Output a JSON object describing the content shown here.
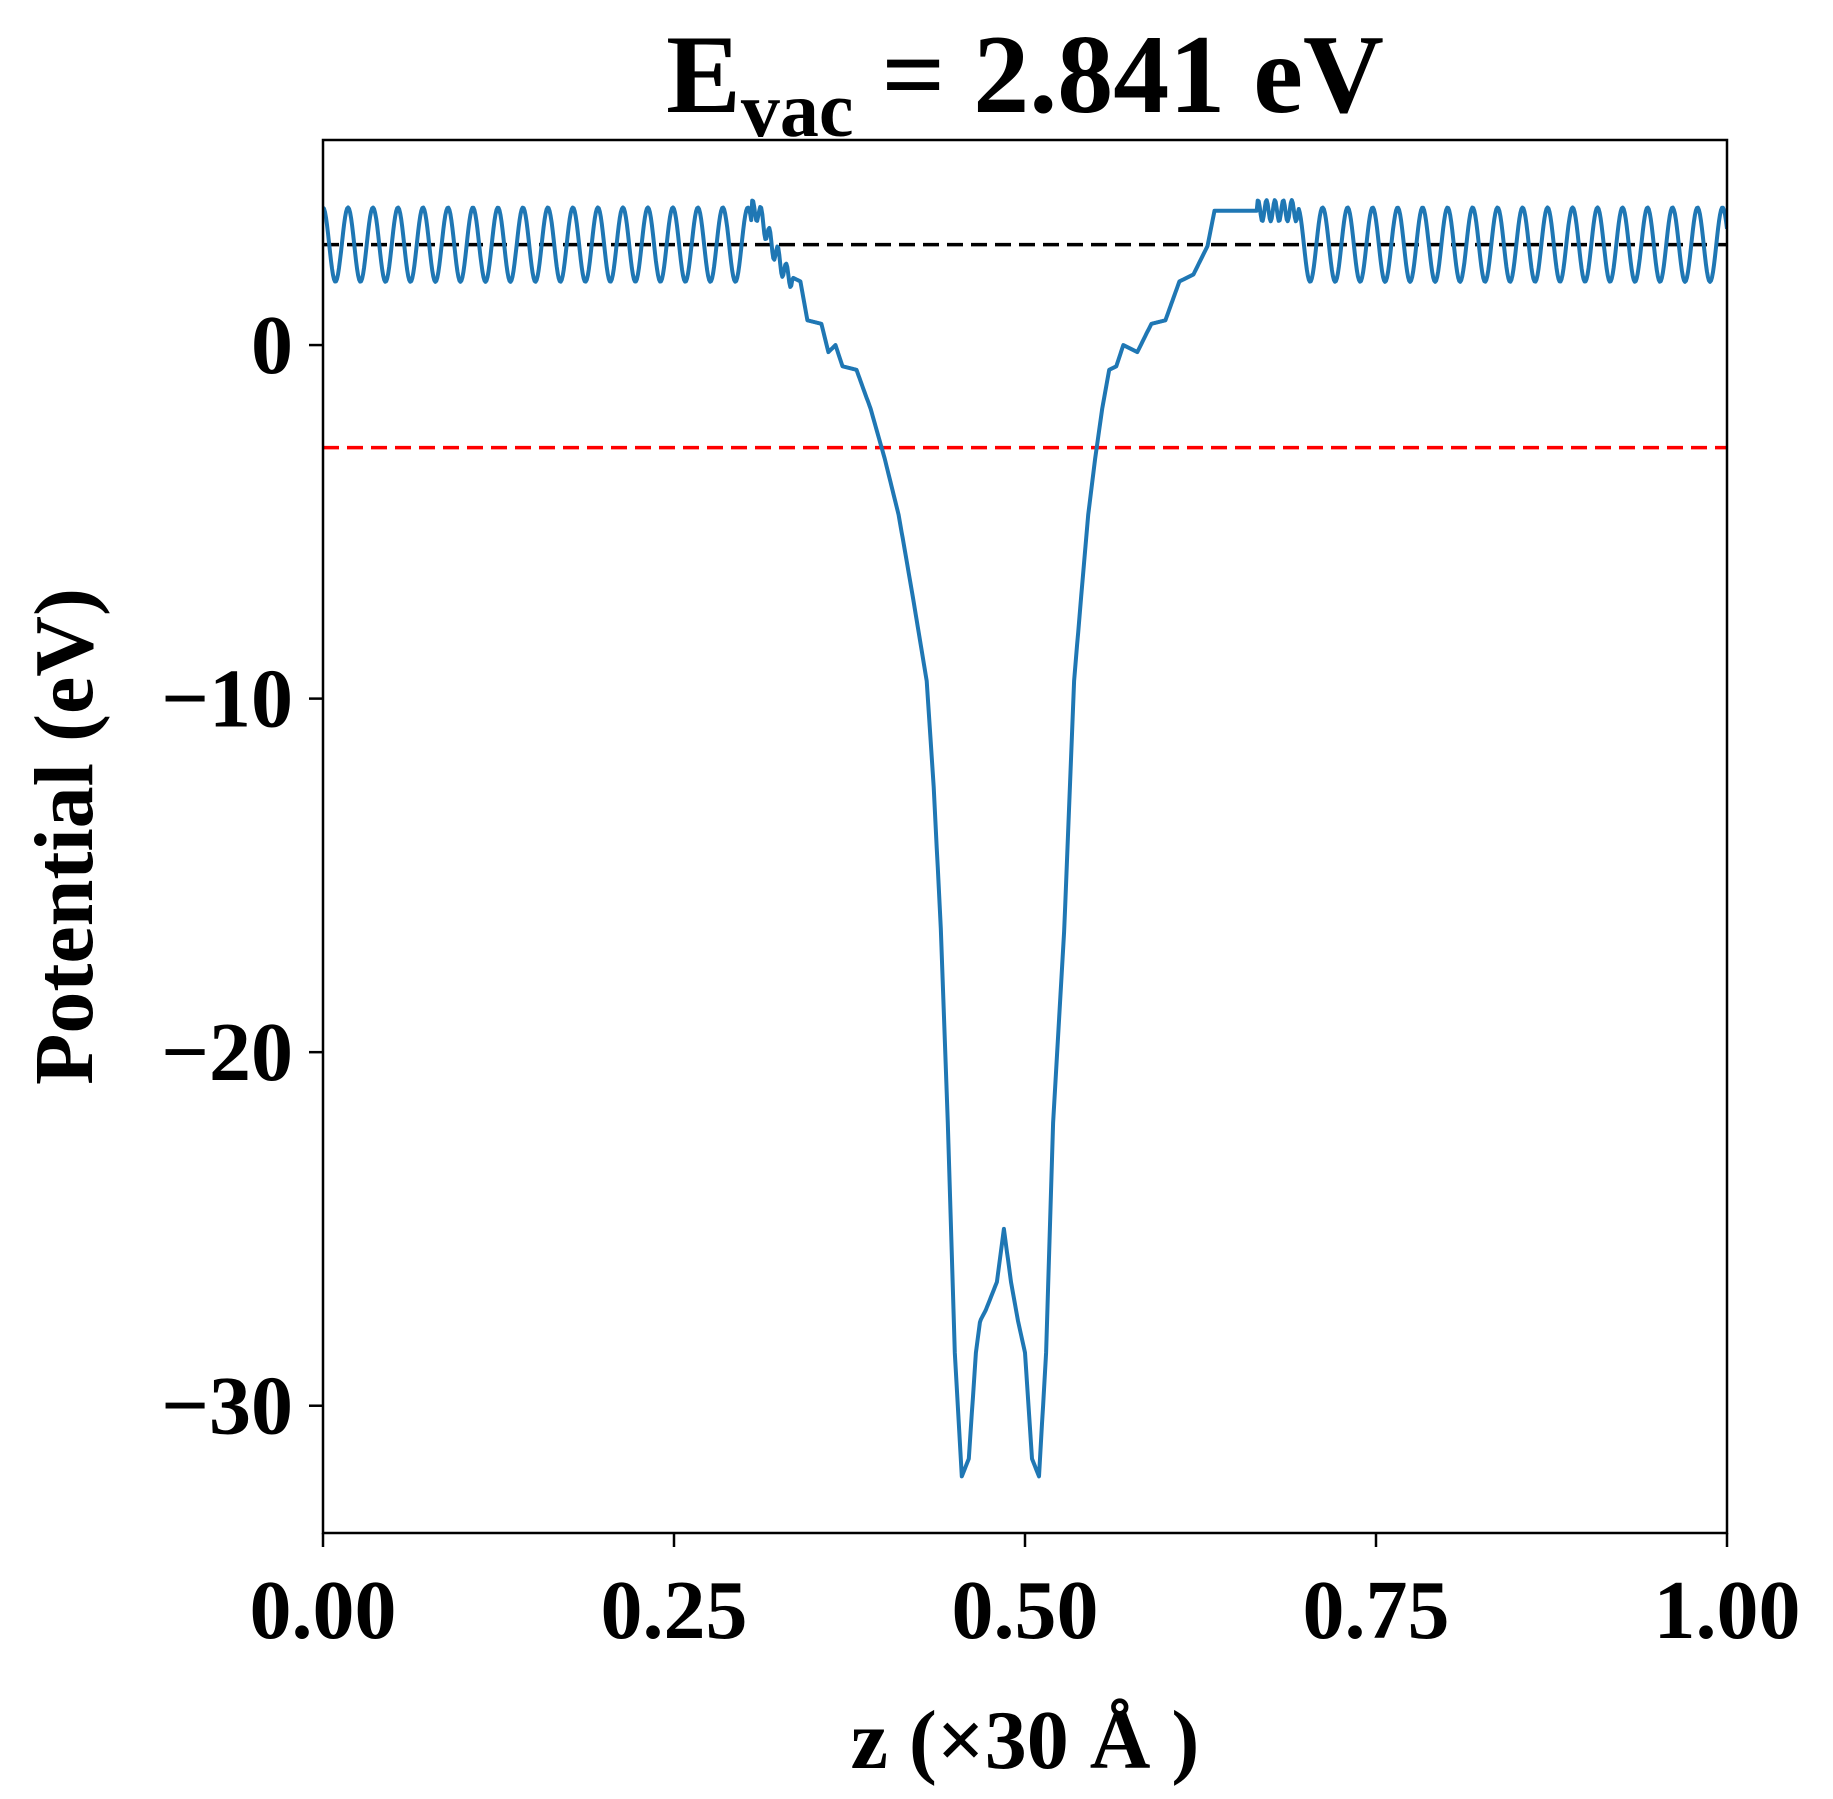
{
  "chart_data": {
    "type": "line",
    "title": {
      "main": "E",
      "subscript": "vac",
      "rest": " = 2.841 eV"
    },
    "xlabel": "z (×30 Å )",
    "ylabel": "Potential (eV)",
    "xlim": [
      0.0,
      1.0
    ],
    "ylim": [
      -33.6,
      5.8
    ],
    "xticks": [
      0.0,
      0.25,
      0.5,
      0.75,
      1.0
    ],
    "xtick_labels": [
      "0.00",
      "0.25",
      "0.50",
      "0.75",
      "1.00"
    ],
    "yticks": [
      0,
      -10,
      -20,
      -30
    ],
    "ytick_labels": [
      "0",
      "−10",
      "−20",
      "−30"
    ],
    "grid": false,
    "legend": "none",
    "hlines": [
      {
        "y": 2.841,
        "color": "#000000",
        "style": "dashed"
      },
      {
        "y": -2.9,
        "color": "#ff0000",
        "style": "dashed"
      }
    ],
    "series": [
      {
        "color": "#1f77b4",
        "x": [
          0.0,
          0.3,
          0.31,
          0.32,
          0.33,
          0.34,
          0.345,
          0.355,
          0.36,
          0.365,
          0.37,
          0.38,
          0.39,
          0.4,
          0.41,
          0.42,
          0.43,
          0.435,
          0.44,
          0.445,
          0.45,
          0.455,
          0.46,
          0.465,
          0.468,
          0.472,
          0.48,
          0.485,
          0.49,
          0.495,
          0.5,
          0.505,
          0.51,
          0.515,
          0.52,
          0.528,
          0.532,
          0.535,
          0.54,
          0.545,
          0.55,
          0.555,
          0.56,
          0.565,
          0.57,
          0.58,
          0.59,
          0.6,
          0.61,
          0.62,
          0.63,
          0.635,
          0.64,
          0.645,
          0.655,
          0.66,
          0.67,
          0.68,
          0.69,
          0.7,
          1.0
        ],
        "y": [
          3.8,
          3.8,
          3.8,
          2.8,
          2.0,
          1.8,
          0.7,
          0.6,
          -0.2,
          0.0,
          -0.6,
          -0.7,
          -1.8,
          -3.2,
          -4.8,
          -7.1,
          -9.5,
          -12.5,
          -16.5,
          -22.0,
          -28.5,
          -32.0,
          -31.5,
          -28.5,
          -27.6,
          -27.3,
          -26.5,
          -25.0,
          -26.5,
          -27.6,
          -28.5,
          -31.5,
          -32.0,
          -28.5,
          -22.0,
          -16.5,
          -12.5,
          -9.5,
          -7.1,
          -4.8,
          -3.2,
          -1.8,
          -0.7,
          -0.6,
          0.0,
          -0.2,
          0.6,
          0.7,
          1.8,
          2.0,
          2.8,
          3.8,
          3.8,
          3.8,
          3.8,
          3.8,
          3.8,
          3.8,
          3.8,
          3.8,
          3.8
        ],
        "oscillation_note_hidden": ""
      }
    ]
  }
}
